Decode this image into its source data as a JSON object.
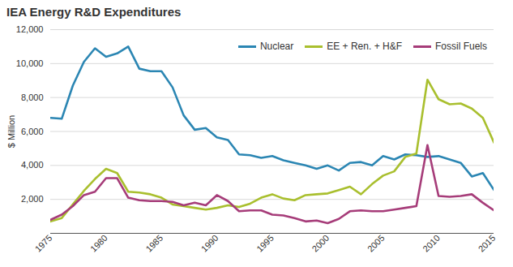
{
  "chart_data": {
    "type": "line",
    "title": "IEA Energy R&D Expenditures",
    "y_label": "$ Million",
    "x": [
      1975,
      1976,
      1977,
      1978,
      1979,
      1980,
      1981,
      1982,
      1983,
      1984,
      1985,
      1986,
      1987,
      1988,
      1989,
      1990,
      1991,
      1992,
      1993,
      1994,
      1995,
      1996,
      1997,
      1998,
      1999,
      2000,
      2001,
      2002,
      2003,
      2004,
      2005,
      2006,
      2007,
      2008,
      2009,
      2010,
      2011,
      2012,
      2013,
      2014,
      2015
    ],
    "series": [
      {
        "name": "Nuclear",
        "color": "#2b86b3",
        "values": [
          6800,
          6750,
          8700,
          10100,
          10900,
          10400,
          10600,
          11000,
          9700,
          9550,
          9550,
          8600,
          6950,
          6100,
          6200,
          5650,
          5500,
          4650,
          4600,
          4450,
          4550,
          4300,
          4150,
          4000,
          3800,
          4000,
          3700,
          4150,
          4200,
          4000,
          4550,
          4350,
          4650,
          4600,
          4500,
          4550,
          4350,
          4150,
          3350,
          3550,
          2550
        ]
      },
      {
        "name": "EE + Ren. + H&F",
        "color": "#a9bf2e",
        "values": [
          700,
          900,
          1700,
          2500,
          3200,
          3800,
          3550,
          2450,
          2400,
          2300,
          2100,
          1700,
          1600,
          1500,
          1400,
          1500,
          1650,
          1550,
          1750,
          2100,
          2300,
          2050,
          1950,
          2250,
          2300,
          2350,
          2550,
          2750,
          2300,
          2900,
          3400,
          3650,
          4500,
          4700,
          9050,
          7900,
          7600,
          7650,
          7350,
          6800,
          5350
        ]
      },
      {
        "name": "Fossil Fuels",
        "color": "#a63c79",
        "values": [
          800,
          1100,
          1600,
          2250,
          2450,
          3250,
          3250,
          2100,
          1950,
          1900,
          1900,
          1850,
          1650,
          1800,
          1650,
          2250,
          1900,
          1300,
          1350,
          1350,
          1100,
          1050,
          900,
          700,
          750,
          600,
          850,
          1300,
          1350,
          1300,
          1300,
          1400,
          1500,
          1600,
          5200,
          2200,
          2150,
          2200,
          2300,
          1800,
          1350
        ]
      }
    ],
    "xlim": [
      1975,
      2015
    ],
    "xticks": [
      1975,
      1980,
      1985,
      1990,
      1995,
      2000,
      2005,
      2010,
      2015
    ],
    "ylim": [
      0,
      12000
    ],
    "yticks": [
      {
        "value": 2000,
        "label": "2,000"
      },
      {
        "value": 4000,
        "label": "4,000"
      },
      {
        "value": 6000,
        "label": "6,000"
      },
      {
        "value": 8000,
        "label": "8,000"
      },
      {
        "value": 10000,
        "label": "10,000"
      },
      {
        "value": 12000,
        "label": "12,000"
      }
    ],
    "grid": true,
    "legend": "top-right"
  }
}
